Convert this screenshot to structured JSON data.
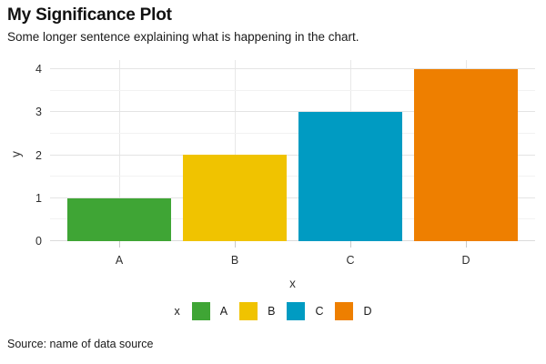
{
  "header": {
    "title": "My Significance Plot",
    "subtitle": "Some longer sentence explaining what is happening in the chart."
  },
  "chart_data": {
    "type": "bar",
    "categories": [
      "A",
      "B",
      "C",
      "D"
    ],
    "values": [
      1,
      2,
      3,
      4
    ],
    "colors": [
      "#3FA535",
      "#F0C300",
      "#009BC2",
      "#EE7F00"
    ],
    "title": "My Significance Plot",
    "subtitle": "Some longer sentence explaining what is happening in the chart.",
    "xlabel": "x",
    "ylabel": "y",
    "ylim": [
      0,
      4
    ],
    "yticks": [
      0,
      1,
      2,
      3,
      4
    ],
    "minor_tick_step": 0.5,
    "grid": "horizontal major+minor, vertical major at category centers",
    "legend": {
      "title": "x",
      "position": "bottom",
      "entries": [
        {
          "label": "A",
          "color": "#3FA535"
        },
        {
          "label": "B",
          "color": "#F0C300"
        },
        {
          "label": "C",
          "color": "#009BC2"
        },
        {
          "label": "D",
          "color": "#EE7F00"
        }
      ]
    }
  },
  "footer": {
    "source": "Source: name of data source"
  },
  "theme": {
    "background": "#FFFFFF",
    "grid_major": "#E4E4E4",
    "grid_minor": "#F2F2F2",
    "grid_vertical": "#E8E8E8",
    "axis_line": "#DBDBDB",
    "tick_mark": "#C9C9C9",
    "text": "#1A1A1A"
  }
}
